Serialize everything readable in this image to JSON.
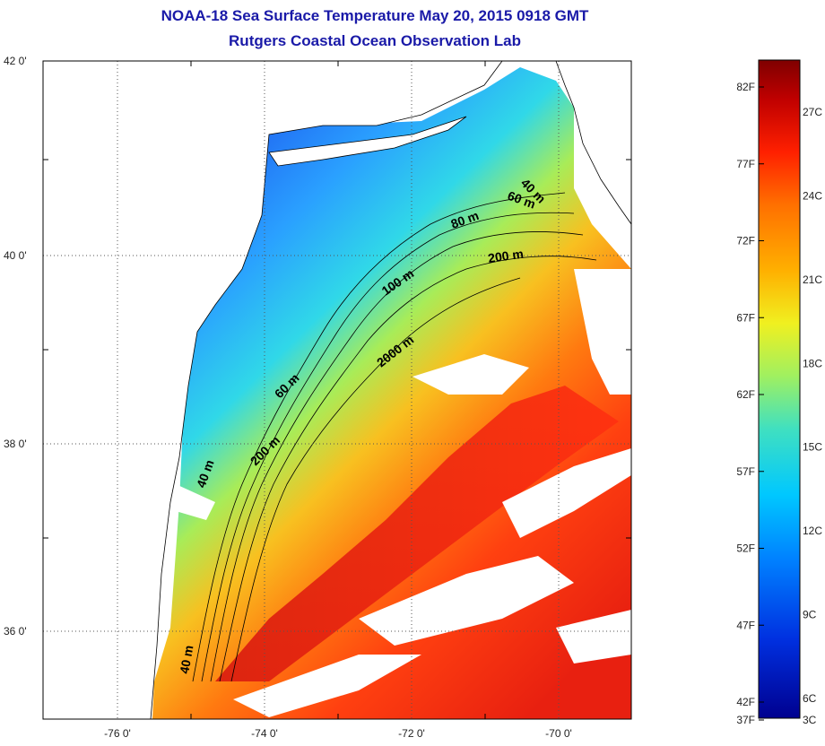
{
  "title": {
    "line1": "NOAA-18 Sea Surface Temperature May 20, 2015 0918 GMT",
    "line2": "Rutgers Coastal Ocean Observation Lab"
  },
  "map": {
    "lon_ticks": [
      "-76 0'",
      "-74 0'",
      "-72 0'",
      "-70 0'"
    ],
    "lat_ticks": [
      "42 0'",
      "40 0'",
      "38 0'",
      "36 0'"
    ],
    "grid": true,
    "depth_contour_labels": [
      "40 m",
      "60 m",
      "80 m",
      "200 m",
      "100 m",
      "2000 m",
      "60 m",
      "200 m",
      "40 m",
      "40 m"
    ]
  },
  "colorbar": {
    "fahrenheit_labels": [
      "82F",
      "77F",
      "72F",
      "67F",
      "62F",
      "57F",
      "52F",
      "47F",
      "42F",
      "37F"
    ],
    "celsius_labels": [
      "27C",
      "24C",
      "21C",
      "18C",
      "15C",
      "12C",
      "9C",
      "6C",
      "3C"
    ],
    "colormap": [
      "#7f0000",
      "#c00000",
      "#ff2000",
      "#ff7000",
      "#ffb000",
      "#f0f020",
      "#a0f060",
      "#40e0c0",
      "#00c8ff",
      "#0080ff",
      "#0030e0",
      "#00008f"
    ]
  },
  "colors": {
    "title": "#1a1aa8",
    "land": "#ffffff",
    "coastline": "#000000"
  }
}
